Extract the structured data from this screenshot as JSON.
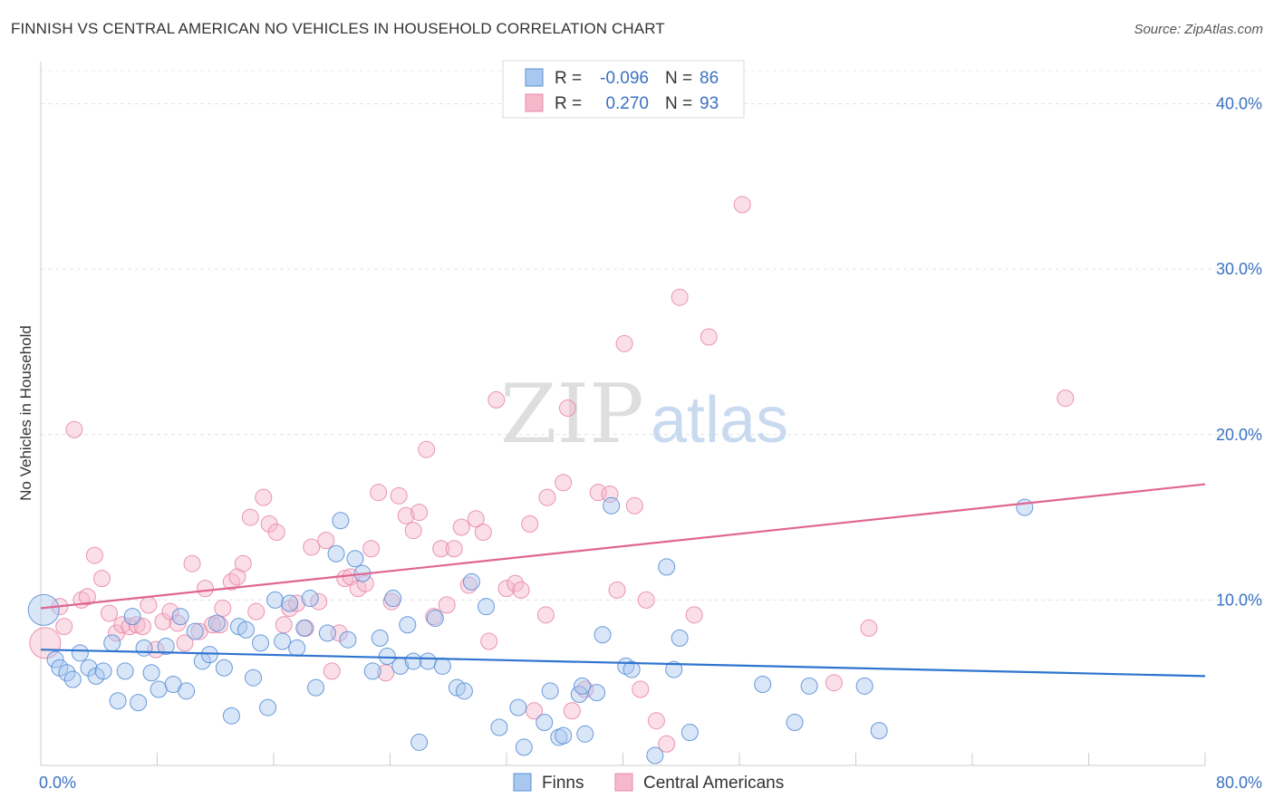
{
  "header": {
    "title": "FINNISH VS CENTRAL AMERICAN NO VEHICLES IN HOUSEHOLD CORRELATION CHART",
    "source": "Source: ZipAtlas.com"
  },
  "watermark": {
    "zip": "ZIP",
    "atlas": "atlas"
  },
  "stats_legend": {
    "finns": {
      "r_label": "R =",
      "r_value": "-0.096",
      "n_label": "N =",
      "n_value": "86"
    },
    "central": {
      "r_label": "R =",
      "r_value": "0.270",
      "n_label": "N =",
      "n_value": "93"
    }
  },
  "chart_data": {
    "type": "scatter",
    "title": "FINNISH VS CENTRAL AMERICAN NO VEHICLES IN HOUSEHOLD CORRELATION CHART",
    "xlabel": "",
    "ylabel": "No Vehicles in Household",
    "xlim": [
      0,
      80
    ],
    "ylim": [
      0,
      42
    ],
    "x_tick_labels": [
      "0.0%",
      "80.0%"
    ],
    "y_ticks": [
      10,
      20,
      30,
      40
    ],
    "y_tick_labels": [
      "10.0%",
      "20.0%",
      "30.0%",
      "40.0%"
    ],
    "grid": true,
    "legend_position": "bottom-center",
    "colors": {
      "finns_fill": "#a9c8f0",
      "finns_stroke": "#5b8fd6",
      "finns_line": "#2f74cf",
      "central_fill": "#f6b9cc",
      "central_stroke": "#e889a8",
      "central_line": "#e0668f",
      "axis_text": "#3a72c2"
    },
    "series": [
      {
        "name": "Finns",
        "r": -0.096,
        "n": 86,
        "trend": {
          "x": [
            0,
            80
          ],
          "y": [
            7.0,
            5.4
          ]
        },
        "points": [
          [
            0.2,
            9.4
          ],
          [
            1.0,
            6.4
          ],
          [
            1.3,
            5.9
          ],
          [
            1.8,
            5.6
          ],
          [
            2.2,
            5.2
          ],
          [
            2.7,
            6.8
          ],
          [
            3.3,
            5.9
          ],
          [
            3.8,
            5.4
          ],
          [
            4.3,
            5.7
          ],
          [
            4.9,
            7.4
          ],
          [
            5.3,
            3.9
          ],
          [
            5.8,
            5.7
          ],
          [
            6.3,
            9.0
          ],
          [
            6.7,
            3.8
          ],
          [
            7.1,
            7.1
          ],
          [
            7.6,
            5.6
          ],
          [
            8.1,
            4.6
          ],
          [
            8.6,
            7.2
          ],
          [
            9.1,
            4.9
          ],
          [
            9.6,
            9.0
          ],
          [
            10.0,
            4.5
          ],
          [
            10.6,
            8.1
          ],
          [
            11.1,
            6.3
          ],
          [
            11.6,
            6.7
          ],
          [
            12.1,
            8.6
          ],
          [
            12.6,
            5.9
          ],
          [
            13.1,
            3.0
          ],
          [
            13.6,
            8.4
          ],
          [
            14.1,
            8.2
          ],
          [
            14.6,
            5.3
          ],
          [
            15.1,
            7.4
          ],
          [
            15.6,
            3.5
          ],
          [
            16.1,
            10.0
          ],
          [
            16.6,
            7.5
          ],
          [
            17.1,
            9.8
          ],
          [
            17.6,
            7.1
          ],
          [
            18.1,
            8.3
          ],
          [
            18.5,
            10.1
          ],
          [
            18.9,
            4.7
          ],
          [
            19.7,
            8.0
          ],
          [
            20.3,
            12.8
          ],
          [
            20.6,
            14.8
          ],
          [
            21.1,
            7.6
          ],
          [
            21.6,
            12.5
          ],
          [
            22.1,
            11.6
          ],
          [
            22.8,
            5.7
          ],
          [
            23.3,
            7.7
          ],
          [
            23.8,
            6.6
          ],
          [
            24.2,
            10.1
          ],
          [
            24.7,
            6.0
          ],
          [
            25.2,
            8.5
          ],
          [
            25.6,
            6.3
          ],
          [
            26.0,
            1.4
          ],
          [
            26.6,
            6.3
          ],
          [
            27.1,
            8.9
          ],
          [
            27.6,
            6.0
          ],
          [
            28.6,
            4.7
          ],
          [
            29.1,
            4.5
          ],
          [
            29.6,
            11.1
          ],
          [
            30.6,
            9.6
          ],
          [
            31.5,
            2.3
          ],
          [
            32.8,
            3.5
          ],
          [
            33.2,
            1.1
          ],
          [
            34.6,
            2.6
          ],
          [
            35.0,
            4.5
          ],
          [
            35.6,
            1.7
          ],
          [
            35.9,
            1.8
          ],
          [
            37.0,
            4.3
          ],
          [
            37.2,
            4.8
          ],
          [
            37.4,
            1.9
          ],
          [
            38.2,
            4.4
          ],
          [
            38.6,
            7.9
          ],
          [
            39.2,
            15.7
          ],
          [
            40.2,
            6.0
          ],
          [
            40.6,
            5.8
          ],
          [
            42.2,
            0.6
          ],
          [
            43.0,
            12.0
          ],
          [
            43.5,
            5.8
          ],
          [
            43.9,
            7.7
          ],
          [
            44.6,
            2.0
          ],
          [
            49.6,
            4.9
          ],
          [
            51.8,
            2.6
          ],
          [
            52.8,
            4.8
          ],
          [
            56.6,
            4.8
          ],
          [
            57.6,
            2.1
          ],
          [
            67.6,
            15.6
          ]
        ]
      },
      {
        "name": "Central Americans",
        "r": 0.27,
        "n": 93,
        "trend": {
          "x": [
            0,
            80
          ],
          "y": [
            9.5,
            17.0
          ]
        },
        "points": [
          [
            0.3,
            7.4
          ],
          [
            1.3,
            9.6
          ],
          [
            1.6,
            8.4
          ],
          [
            2.3,
            20.3
          ],
          [
            2.8,
            10.0
          ],
          [
            3.2,
            10.2
          ],
          [
            3.7,
            12.7
          ],
          [
            4.2,
            11.3
          ],
          [
            4.7,
            9.2
          ],
          [
            5.2,
            8.0
          ],
          [
            5.6,
            8.5
          ],
          [
            6.1,
            8.4
          ],
          [
            6.6,
            8.5
          ],
          [
            7.0,
            8.4
          ],
          [
            7.4,
            9.7
          ],
          [
            7.9,
            7.0
          ],
          [
            8.4,
            8.7
          ],
          [
            8.9,
            9.3
          ],
          [
            9.4,
            8.6
          ],
          [
            9.9,
            7.4
          ],
          [
            10.4,
            12.2
          ],
          [
            10.9,
            8.1
          ],
          [
            11.3,
            10.7
          ],
          [
            11.8,
            8.5
          ],
          [
            12.3,
            8.5
          ],
          [
            12.5,
            9.5
          ],
          [
            13.1,
            11.1
          ],
          [
            13.5,
            11.4
          ],
          [
            13.9,
            12.2
          ],
          [
            14.4,
            15.0
          ],
          [
            14.8,
            9.3
          ],
          [
            15.3,
            16.2
          ],
          [
            15.7,
            14.6
          ],
          [
            16.2,
            14.1
          ],
          [
            16.7,
            8.5
          ],
          [
            17.1,
            9.5
          ],
          [
            17.6,
            9.8
          ],
          [
            18.2,
            8.3
          ],
          [
            18.6,
            13.2
          ],
          [
            19.1,
            9.9
          ],
          [
            19.6,
            13.6
          ],
          [
            20.0,
            5.7
          ],
          [
            20.5,
            8.0
          ],
          [
            20.9,
            11.3
          ],
          [
            21.3,
            11.4
          ],
          [
            21.8,
            10.7
          ],
          [
            22.3,
            11.0
          ],
          [
            22.7,
            13.1
          ],
          [
            23.2,
            16.5
          ],
          [
            23.7,
            5.6
          ],
          [
            24.1,
            9.9
          ],
          [
            24.6,
            16.3
          ],
          [
            25.1,
            15.1
          ],
          [
            25.6,
            14.2
          ],
          [
            26.0,
            15.3
          ],
          [
            26.5,
            19.1
          ],
          [
            27.0,
            9.0
          ],
          [
            27.5,
            13.1
          ],
          [
            27.9,
            9.7
          ],
          [
            28.4,
            13.1
          ],
          [
            28.9,
            14.4
          ],
          [
            29.4,
            10.9
          ],
          [
            29.9,
            14.9
          ],
          [
            30.4,
            14.1
          ],
          [
            30.8,
            7.5
          ],
          [
            31.3,
            22.1
          ],
          [
            32.0,
            10.7
          ],
          [
            32.6,
            11.0
          ],
          [
            33.0,
            10.6
          ],
          [
            33.6,
            14.6
          ],
          [
            33.9,
            3.3
          ],
          [
            34.7,
            9.1
          ],
          [
            34.8,
            16.2
          ],
          [
            35.9,
            17.1
          ],
          [
            36.2,
            21.6
          ],
          [
            36.5,
            3.3
          ],
          [
            37.4,
            4.6
          ],
          [
            38.3,
            16.5
          ],
          [
            39.1,
            16.4
          ],
          [
            39.6,
            10.6
          ],
          [
            40.1,
            25.5
          ],
          [
            40.8,
            15.7
          ],
          [
            41.2,
            4.6
          ],
          [
            41.6,
            10.0
          ],
          [
            42.3,
            2.7
          ],
          [
            43.0,
            1.3
          ],
          [
            43.9,
            28.3
          ],
          [
            44.9,
            9.1
          ],
          [
            45.9,
            25.9
          ],
          [
            48.2,
            33.9
          ],
          [
            54.5,
            5.0
          ],
          [
            56.9,
            8.3
          ],
          [
            70.4,
            22.2
          ]
        ]
      }
    ]
  },
  "bottom_legend": {
    "finns_label": "Finns",
    "central_label": "Central Americans"
  }
}
